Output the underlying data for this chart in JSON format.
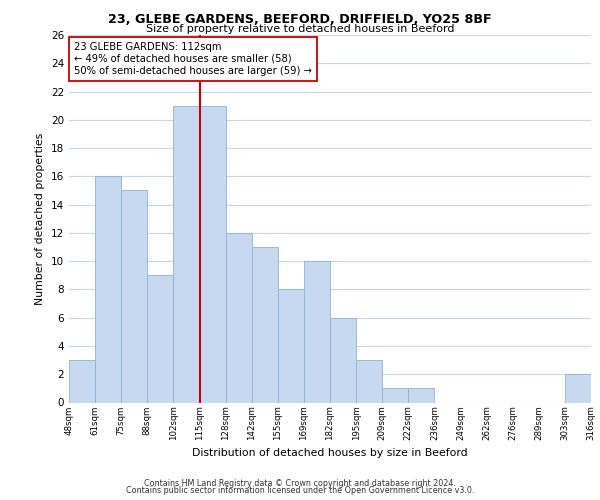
{
  "title1": "23, GLEBE GARDENS, BEEFORD, DRIFFIELD, YO25 8BF",
  "title2": "Size of property relative to detached houses in Beeford",
  "xlabel": "Distribution of detached houses by size in Beeford",
  "ylabel": "Number of detached properties",
  "bin_labels": [
    "48sqm",
    "61sqm",
    "75sqm",
    "88sqm",
    "102sqm",
    "115sqm",
    "128sqm",
    "142sqm",
    "155sqm",
    "169sqm",
    "182sqm",
    "195sqm",
    "209sqm",
    "222sqm",
    "236sqm",
    "249sqm",
    "262sqm",
    "276sqm",
    "289sqm",
    "303sqm",
    "316sqm"
  ],
  "bar_heights": [
    3,
    16,
    15,
    9,
    21,
    21,
    12,
    11,
    8,
    10,
    6,
    3,
    1,
    1,
    0,
    0,
    0,
    0,
    0,
    2
  ],
  "bar_color": "#c6d9f0",
  "bar_edge_color": "#8ab4d4",
  "vline_x": 4,
  "vline_color": "#cc0000",
  "annotation_title": "23 GLEBE GARDENS: 112sqm",
  "annotation_line1": "← 49% of detached houses are smaller (58)",
  "annotation_line2": "50% of semi-detached houses are larger (59) →",
  "annotation_box_color": "#ffffff",
  "annotation_box_edge": "#cc0000",
  "ylim": [
    0,
    26
  ],
  "yticks": [
    0,
    2,
    4,
    6,
    8,
    10,
    12,
    14,
    16,
    18,
    20,
    22,
    24,
    26
  ],
  "footer1": "Contains HM Land Registry data © Crown copyright and database right 2024.",
  "footer2": "Contains public sector information licensed under the Open Government Licence v3.0.",
  "background_color": "#ffffff",
  "grid_color": "#c8d8ec"
}
